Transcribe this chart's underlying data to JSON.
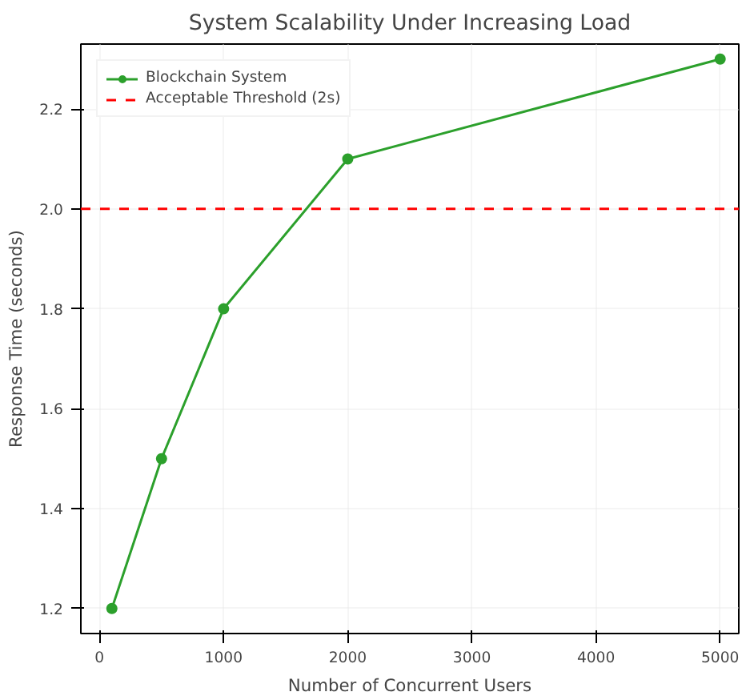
{
  "chart_data": {
    "type": "line",
    "title": "System Scalability Under Increasing Load",
    "xlabel": "Number of Concurrent Users",
    "ylabel": "Response Time (seconds)",
    "x": [
      100,
      500,
      1000,
      2000,
      5000
    ],
    "series": [
      {
        "name": "Blockchain System",
        "color": "#2ca02c",
        "values": [
          1.2,
          1.5,
          1.8,
          2.1,
          2.3
        ]
      }
    ],
    "ref_lines": [
      {
        "axis": "y",
        "value": 2.0,
        "label": "Acceptable Threshold (2s)",
        "color": "#ff0000",
        "line_style": "dashed"
      }
    ],
    "xlim": [
      -150,
      5150
    ],
    "ylim": [
      1.15,
      2.33
    ],
    "xticks": [
      0,
      1000,
      2000,
      3000,
      4000,
      5000
    ],
    "yticks": [
      1.2,
      1.4,
      1.6,
      1.8,
      {
        "value": 2,
        "label": "2.0"
      },
      2.2
    ],
    "grid": true,
    "legend": "top left",
    "marker": "circle",
    "line_style": "solid"
  }
}
